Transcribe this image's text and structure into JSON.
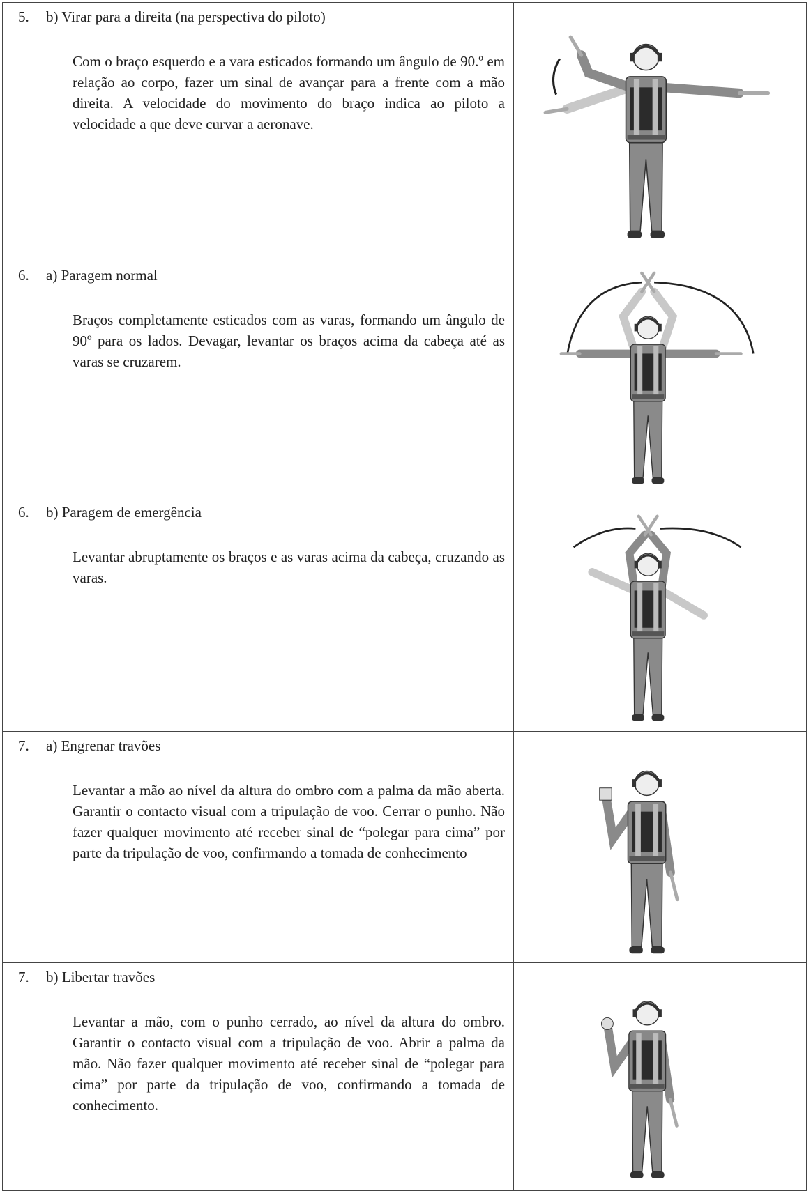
{
  "rows": [
    {
      "number": "5.",
      "title": "b) Virar para a direita (na perspectiva do piloto)",
      "description": "Com o braço esquerdo e a vara esticados formando um ângulo de 90.º em relação ao corpo, fazer um sinal de avançar para a frente com a mão direita. A velocidade do movimento do braço indica ao piloto a velocidade a que deve curvar a aeronave."
    },
    {
      "number": "6.",
      "title": "a) Paragem normal",
      "description": "Braços completamente esticados com as varas, formando um ângulo de 90º para os lados. Devagar, levantar os braços acima da cabeça até as varas se cruzarem."
    },
    {
      "number": "6.",
      "title": "b) Paragem de emergência",
      "description": "Levantar abruptamente os braços e as varas acima da cabeça, cruzando as varas."
    },
    {
      "number": "7.",
      "title": "a) Engrenar travões",
      "description": "Levantar a mão ao nível da altura do ombro com a palma da mão aberta. Garantir o contacto visual com a tripulação de voo. Cerrar o punho. Não fazer qualquer movimento até receber sinal de “polegar para cima” por parte da tripulação de voo, confirmando a tomada de conhecimento"
    },
    {
      "number": "7.",
      "title": "b) Libertar travões",
      "description": "Levantar a mão, com o punho cerrado, ao nível da altura do ombro. Garantir o contacto visual com a tripulação de voo. Abrir a palma da mão. Não fazer qualquer movimento até receber sinal de “polegar para cima” por parte da tripulação de voo, confirmando a tomada de conhecimento."
    }
  ]
}
